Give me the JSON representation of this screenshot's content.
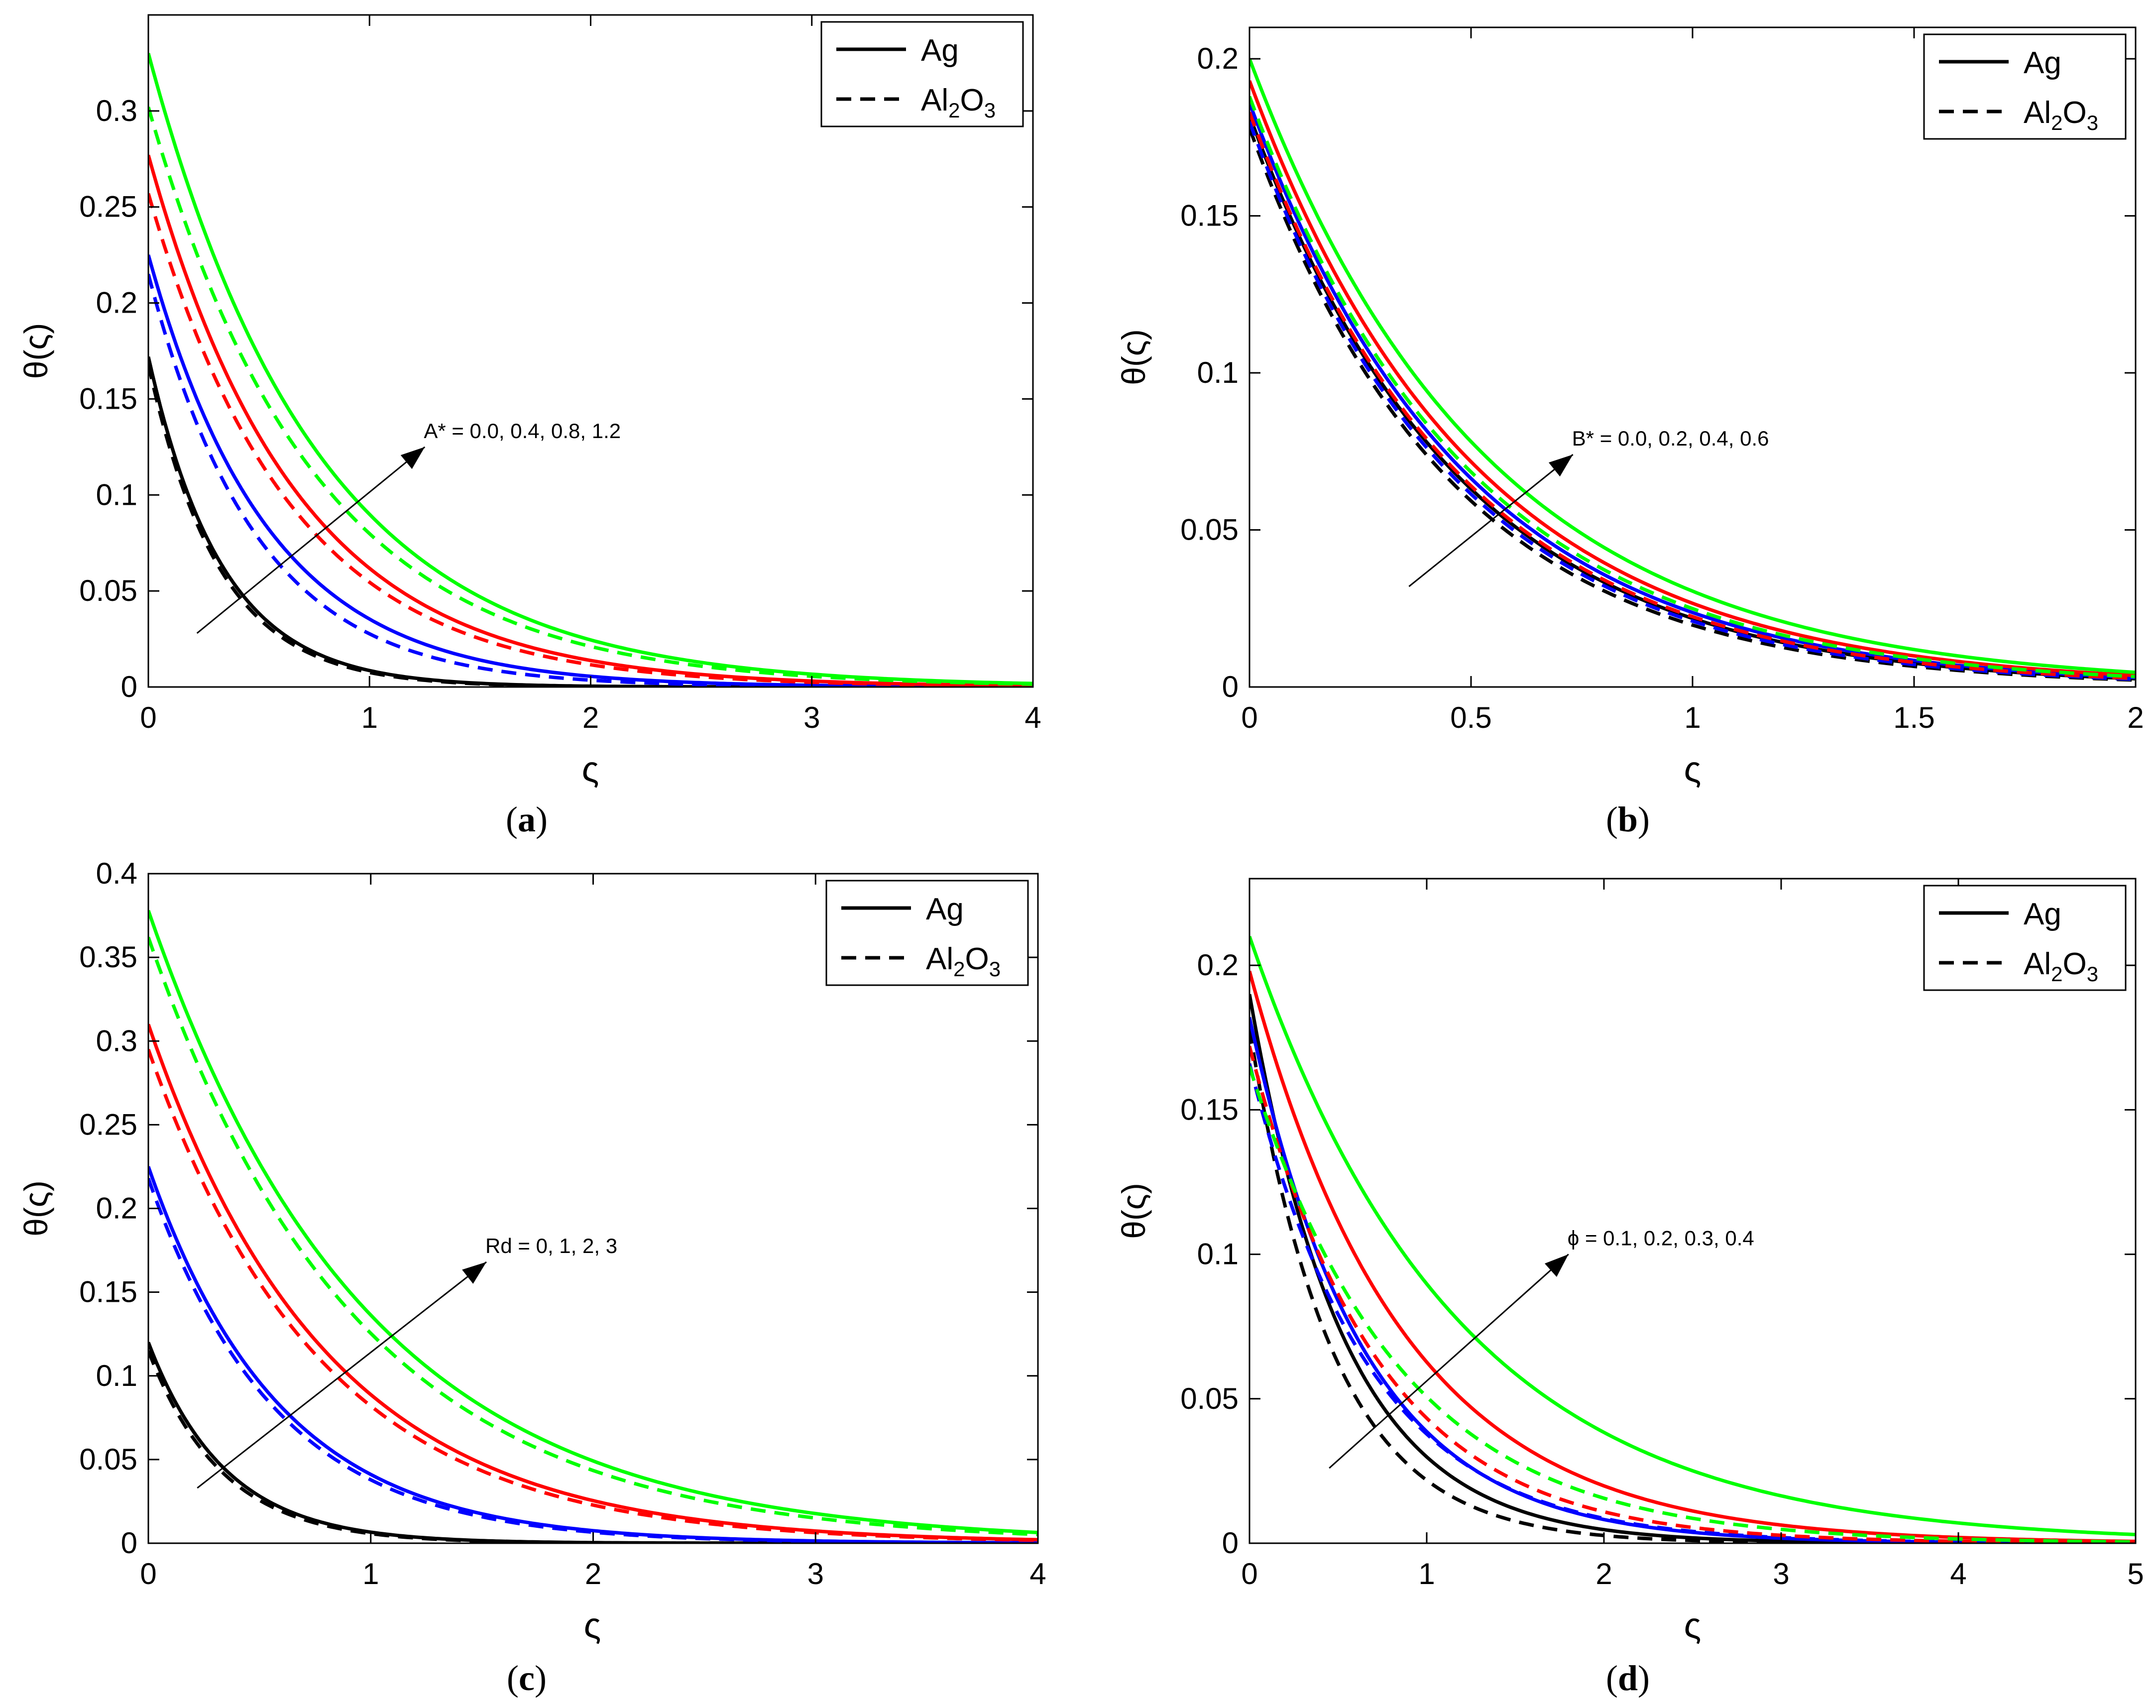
{
  "figure": {
    "legend_solid_label": "Ag",
    "legend_dashed_label_parts": [
      "Al",
      "2",
      "O",
      "3"
    ],
    "ylabel": "θ(ς)",
    "xlabel": "ς",
    "series_colors": [
      "#000000",
      "#0000ff",
      "#ff0000",
      "#00ff00"
    ]
  },
  "chart_data": [
    {
      "type": "line",
      "caption": "(a)",
      "caption_parts": [
        "(",
        "a",
        ")"
      ],
      "xlabel": "ς",
      "ylabel": "θ(ς)",
      "xlim": [
        0,
        4
      ],
      "ylim": [
        0,
        0.35
      ],
      "xticks": [
        0,
        1,
        2,
        3,
        4
      ],
      "xtick_labels": [
        "0",
        "1",
        "2",
        "3",
        "4"
      ],
      "yticks": [
        0,
        0.05,
        0.1,
        0.15,
        0.2,
        0.25,
        0.3
      ],
      "ytick_labels": [
        "0",
        "0.05",
        "0.1",
        "0.15",
        "0.2",
        "0.25",
        "0.3"
      ],
      "annotation": {
        "text": "A* = 0.0, 0.4, 0.8, 1.2",
        "from": [
          0.22,
          0.028
        ],
        "to": [
          1.25,
          0.125
        ]
      },
      "legend": [
        "Ag",
        "Al2O3"
      ],
      "series": [
        {
          "name": "Ag, A* = 0.0",
          "color": "#000000",
          "dash": false,
          "y0": 0.172,
          "decay": 3.0
        },
        {
          "name": "Al2O3, A* = 0.0",
          "color": "#000000",
          "dash": true,
          "y0": 0.168,
          "decay": 3.1
        },
        {
          "name": "Ag, A* = 0.4",
          "color": "#0000ff",
          "dash": false,
          "y0": 0.225,
          "decay": 1.85
        },
        {
          "name": "Al2O3, A* = 0.4",
          "color": "#0000ff",
          "dash": true,
          "y0": 0.215,
          "decay": 2.05
        },
        {
          "name": "Ag, A* = 0.8",
          "color": "#ff0000",
          "dash": false,
          "y0": 0.277,
          "decay": 1.5
        },
        {
          "name": "Al2O3, A* = 0.8",
          "color": "#ff0000",
          "dash": true,
          "y0": 0.257,
          "decay": 1.55
        },
        {
          "name": "Ag, A* = 1.2",
          "color": "#00ff00",
          "dash": false,
          "y0": 0.33,
          "decay": 1.3
        },
        {
          "name": "Al2O3, A* = 1.2",
          "color": "#00ff00",
          "dash": true,
          "y0": 0.302,
          "decay": 1.33
        }
      ]
    },
    {
      "type": "line",
      "caption": "(b)",
      "caption_parts": [
        "(",
        "b",
        ")"
      ],
      "xlabel": "ς",
      "ylabel": "θ(ς)",
      "xlim": [
        0,
        2
      ],
      "ylim": [
        0,
        0.21
      ],
      "xticks": [
        0,
        0.5,
        1,
        1.5,
        2
      ],
      "xtick_labels": [
        "0",
        "0.5",
        "1",
        "1.5",
        "2"
      ],
      "yticks": [
        0,
        0.05,
        0.1,
        0.15,
        0.2
      ],
      "ytick_labels": [
        "0",
        "0.05",
        "0.1",
        "0.15",
        "0.2"
      ],
      "annotation": {
        "text": "B* = 0.0, 0.2, 0.4, 0.6",
        "from": [
          0.36,
          0.032
        ],
        "to": [
          0.73,
          0.074
        ]
      },
      "legend": [
        "Ag",
        "Al2O3"
      ],
      "series": [
        {
          "name": "Ag, B* = 0.0",
          "color": "#000000",
          "dash": false,
          "y0": 0.182,
          "decay": 2.12
        },
        {
          "name": "Al2O3, B* = 0.0",
          "color": "#000000",
          "dash": true,
          "y0": 0.178,
          "decay": 2.2
        },
        {
          "name": "Ag, B* = 0.2",
          "color": "#0000ff",
          "dash": false,
          "y0": 0.186,
          "decay": 2.06
        },
        {
          "name": "Al2O3, B* = 0.2",
          "color": "#0000ff",
          "dash": true,
          "y0": 0.18,
          "decay": 2.15
        },
        {
          "name": "Ag, B* = 0.4",
          "color": "#ff0000",
          "dash": false,
          "y0": 0.193,
          "decay": 1.98
        },
        {
          "name": "Al2O3, B* = 0.4",
          "color": "#ff0000",
          "dash": true,
          "y0": 0.183,
          "decay": 2.1
        },
        {
          "name": "Ag, B* = 0.6",
          "color": "#00ff00",
          "dash": false,
          "y0": 0.2,
          "decay": 1.88
        },
        {
          "name": "Al2O3, B* = 0.6",
          "color": "#00ff00",
          "dash": true,
          "y0": 0.188,
          "decay": 2.02
        }
      ]
    },
    {
      "type": "line",
      "caption": "(c)",
      "caption_parts": [
        "(",
        "c",
        ")"
      ],
      "xlabel": "ς",
      "ylabel": "θ(ς)",
      "xlim": [
        0,
        4
      ],
      "ylim": [
        0,
        0.4
      ],
      "xticks": [
        0,
        1,
        2,
        3,
        4
      ],
      "xtick_labels": [
        "0",
        "1",
        "2",
        "3",
        "4"
      ],
      "yticks": [
        0,
        0.05,
        0.1,
        0.15,
        0.2,
        0.25,
        0.3,
        0.35,
        0.4
      ],
      "ytick_labels": [
        "0",
        "0.05",
        "0.1",
        "0.15",
        "0.2",
        "0.25",
        "0.3",
        "0.35",
        "0.4"
      ],
      "annotation": {
        "text": "Rd = 0, 1, 2, 3",
        "from": [
          0.22,
          0.033
        ],
        "to": [
          1.52,
          0.168
        ]
      },
      "legend": [
        "Ag",
        "Al2O3"
      ],
      "series": [
        {
          "name": "Ag, Rd = 0",
          "color": "#000000",
          "dash": false,
          "y0": 0.12,
          "decay": 2.9
        },
        {
          "name": "Al2O3, Rd = 0",
          "color": "#000000",
          "dash": true,
          "y0": 0.115,
          "decay": 3.0
        },
        {
          "name": "Ag, Rd = 1",
          "color": "#0000ff",
          "dash": false,
          "y0": 0.225,
          "decay": 1.7
        },
        {
          "name": "Al2O3, Rd = 1",
          "color": "#0000ff",
          "dash": true,
          "y0": 0.218,
          "decay": 1.75
        },
        {
          "name": "Ag, Rd = 2",
          "color": "#ff0000",
          "dash": false,
          "y0": 0.31,
          "decay": 1.25
        },
        {
          "name": "Al2O3, Rd = 2",
          "color": "#ff0000",
          "dash": true,
          "y0": 0.295,
          "decay": 1.28
        },
        {
          "name": "Ag, Rd = 3",
          "color": "#00ff00",
          "dash": false,
          "y0": 0.378,
          "decay": 1.02
        },
        {
          "name": "Al2O3, Rd = 3",
          "color": "#00ff00",
          "dash": true,
          "y0": 0.362,
          "decay": 1.06
        }
      ]
    },
    {
      "type": "line",
      "caption": "(d)",
      "caption_parts": [
        "(",
        "d",
        ")"
      ],
      "xlabel": "ς",
      "ylabel": "θ(ς)",
      "xlim": [
        0,
        5
      ],
      "ylim": [
        0,
        0.23
      ],
      "xticks": [
        0,
        1,
        2,
        3,
        4,
        5
      ],
      "xtick_labels": [
        "0",
        "1",
        "2",
        "3",
        "4",
        "5"
      ],
      "yticks": [
        0,
        0.05,
        0.1,
        0.15,
        0.2
      ],
      "ytick_labels": [
        "0",
        "0.05",
        "0.1",
        "0.15",
        "0.2"
      ],
      "annotation": {
        "text": "ϕ = 0.1, 0.2, 0.3, 0.4",
        "from": [
          0.45,
          0.026
        ],
        "to": [
          1.8,
          0.1
        ]
      },
      "legend": [
        "Ag",
        "Al2O3"
      ],
      "series": [
        {
          "name": "Ag, ϕ = 0.1",
          "color": "#000000",
          "dash": false,
          "y0": 0.19,
          "decay": 1.85
        },
        {
          "name": "Al2O3, ϕ = 0.1",
          "color": "#000000",
          "dash": true,
          "y0": 0.178,
          "decay": 2.1
        },
        {
          "name": "Ag, ϕ = 0.2",
          "color": "#0000ff",
          "dash": false,
          "y0": 0.182,
          "decay": 1.55
        },
        {
          "name": "Al2O3, ϕ = 0.2",
          "color": "#0000ff",
          "dash": true,
          "y0": 0.166,
          "decay": 1.48
        },
        {
          "name": "Ag, ϕ = 0.3",
          "color": "#ff0000",
          "dash": false,
          "y0": 0.198,
          "decay": 1.15
        },
        {
          "name": "Al2O3, ϕ = 0.3",
          "color": "#ff0000",
          "dash": true,
          "y0": 0.172,
          "decay": 1.38
        },
        {
          "name": "Ag, ϕ = 0.4",
          "color": "#00ff00",
          "dash": false,
          "y0": 0.21,
          "decay": 0.85
        },
        {
          "name": "Al2O3, ϕ = 0.4",
          "color": "#00ff00",
          "dash": true,
          "y0": 0.165,
          "decay": 1.18
        }
      ]
    }
  ]
}
